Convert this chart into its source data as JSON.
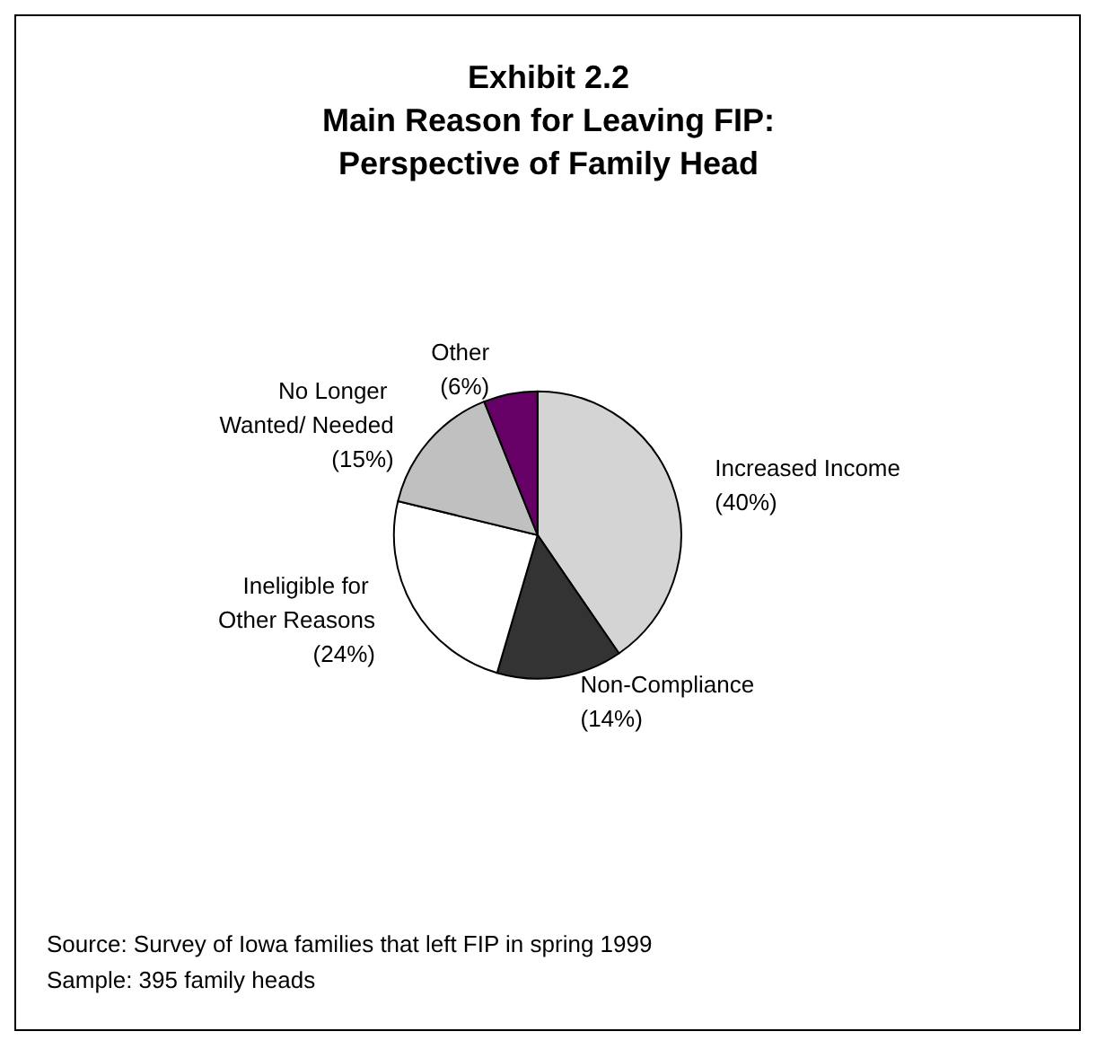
{
  "chart_data": {
    "type": "pie",
    "title": "Exhibit 2.2\nMain Reason for Leaving FIP:\nPerspective of Family Head",
    "categories": [
      "Increased Income",
      "Non-Compliance",
      "Ineligible for Other Reasons",
      "No Longer Wanted/ Needed",
      "Other"
    ],
    "values": [
      40,
      14,
      24,
      15,
      6
    ],
    "colors": [
      "#d4d4d4",
      "#333333",
      "#ffffff",
      "#c0c0c0",
      "#660066"
    ],
    "value_labels": [
      "(40%)",
      "(14%)",
      "(24%)",
      "(15%)",
      "(6%)"
    ],
    "annotations": [
      "Source: Survey of Iowa families that left FIP in spring 1999",
      "Sample: 395 family heads"
    ]
  }
}
